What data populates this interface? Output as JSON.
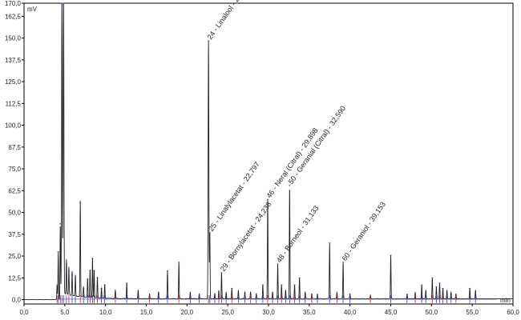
{
  "chart_data": {
    "type": "line",
    "title": "",
    "ylabel": "mV",
    "xlabel": "min",
    "xlim": [
      0,
      60
    ],
    "ylim": [
      -2.5,
      170
    ],
    "xticks": [
      0,
      5,
      10,
      15,
      20,
      25,
      30,
      35,
      40,
      45,
      50,
      55,
      60
    ],
    "xtick_labels": [
      "0,0",
      "5,0",
      "10,0",
      "15,0",
      "20,0",
      "25,0",
      "30,0",
      "35,0",
      "40,0",
      "45,0",
      "50,0",
      "55,0",
      "60,0"
    ],
    "yticks": [
      0,
      12.5,
      25,
      37.5,
      50,
      62.5,
      75,
      87.5,
      100,
      112.5,
      125,
      137.5,
      150,
      162.5,
      170
    ],
    "ytick_labels": [
      "0,0",
      "12,5",
      "25,0",
      "37,5",
      "50,0",
      "62,5",
      "75,0",
      "87,5",
      "100,0",
      "112,5",
      "125,0",
      "137,5",
      "150,0",
      "162,5",
      "170,0"
    ],
    "grid": false,
    "legend": "none",
    "trace_color": "#222222",
    "baseline_color": "#3a3acc",
    "peaks": [
      {
        "rt": 4.05,
        "height": 8
      },
      {
        "rt": 4.2,
        "height": 27
      },
      {
        "rt": 4.45,
        "height": 43
      },
      {
        "rt": 4.65,
        "height": 171
      },
      {
        "rt": 4.85,
        "height": 171
      },
      {
        "rt": 5.2,
        "height": 20
      },
      {
        "rt": 5.5,
        "height": 16
      },
      {
        "rt": 5.9,
        "height": 14
      },
      {
        "rt": 6.3,
        "height": 12
      },
      {
        "rt": 6.9,
        "height": 55
      },
      {
        "rt": 7.3,
        "height": 6
      },
      {
        "rt": 7.8,
        "height": 11
      },
      {
        "rt": 8.1,
        "height": 16
      },
      {
        "rt": 8.4,
        "height": 23
      },
      {
        "rt": 8.6,
        "height": 16
      },
      {
        "rt": 9.0,
        "height": 12
      },
      {
        "rt": 9.5,
        "height": 6
      },
      {
        "rt": 9.9,
        "height": 8
      },
      {
        "rt": 11.2,
        "height": 5
      },
      {
        "rt": 12.6,
        "height": 9
      },
      {
        "rt": 14.0,
        "height": 5
      },
      {
        "rt": 15.4,
        "height": 3
      },
      {
        "rt": 16.5,
        "height": 4
      },
      {
        "rt": 17.6,
        "height": 16
      },
      {
        "rt": 19.0,
        "height": 21
      },
      {
        "rt": 20.4,
        "height": 4
      },
      {
        "rt": 21.5,
        "height": 3
      },
      {
        "rt": 22.637,
        "height": 148
      },
      {
        "rt": 22.797,
        "height": 38
      },
      {
        "rt": 23.4,
        "height": 3
      },
      {
        "rt": 23.9,
        "height": 5
      },
      {
        "rt": 24.238,
        "height": 15
      },
      {
        "rt": 24.8,
        "height": 4
      },
      {
        "rt": 25.5,
        "height": 6
      },
      {
        "rt": 26.3,
        "height": 5
      },
      {
        "rt": 27.1,
        "height": 4
      },
      {
        "rt": 27.8,
        "height": 4
      },
      {
        "rt": 28.5,
        "height": 3
      },
      {
        "rt": 29.3,
        "height": 8
      },
      {
        "rt": 29.898,
        "height": 57
      },
      {
        "rt": 30.5,
        "height": 4
      },
      {
        "rt": 31.133,
        "height": 20
      },
      {
        "rt": 31.6,
        "height": 8
      },
      {
        "rt": 32.1,
        "height": 5
      },
      {
        "rt": 32.59,
        "height": 65
      },
      {
        "rt": 33.2,
        "height": 8
      },
      {
        "rt": 33.8,
        "height": 12
      },
      {
        "rt": 34.5,
        "height": 4
      },
      {
        "rt": 35.3,
        "height": 3
      },
      {
        "rt": 36.0,
        "height": 3
      },
      {
        "rt": 37.5,
        "height": 32
      },
      {
        "rt": 38.4,
        "height": 4
      },
      {
        "rt": 39.153,
        "height": 21
      },
      {
        "rt": 40.0,
        "height": 3
      },
      {
        "rt": 42.5,
        "height": 2
      },
      {
        "rt": 45.0,
        "height": 25
      },
      {
        "rt": 47.0,
        "height": 3
      },
      {
        "rt": 48.0,
        "height": 4
      },
      {
        "rt": 48.8,
        "height": 8
      },
      {
        "rt": 49.3,
        "height": 5
      },
      {
        "rt": 50.1,
        "height": 12
      },
      {
        "rt": 50.6,
        "height": 7
      },
      {
        "rt": 51.0,
        "height": 9
      },
      {
        "rt": 51.4,
        "height": 6
      },
      {
        "rt": 51.9,
        "height": 5
      },
      {
        "rt": 52.4,
        "height": 4
      },
      {
        "rt": 53.0,
        "height": 3
      },
      {
        "rt": 54.7,
        "height": 6
      },
      {
        "rt": 55.4,
        "height": 5
      }
    ],
    "annotations": [
      {
        "text": "24 - Linalool - 22,637",
        "rt": 22.637,
        "y": 148,
        "color": "#222222"
      },
      {
        "text": "25 - Linalylacetat - 22,797",
        "rt": 22.797,
        "y": 38,
        "color": "#222222"
      },
      {
        "text": "29 - Bornylacetat - 24,238",
        "rt": 24.238,
        "y": 15,
        "color": "#2a8a2a"
      },
      {
        "text": "46 - Neral (Citral) - 29,898",
        "rt": 29.898,
        "y": 57,
        "color": "#222222"
      },
      {
        "text": "48 - Borneol - 31,133",
        "rt": 31.133,
        "y": 20,
        "color": "#222222"
      },
      {
        "text": "50 - Geranial (Citral) - 32,590",
        "rt": 32.59,
        "y": 65,
        "color": "#222222"
      },
      {
        "text": "60 - Geraniol - 39,153",
        "rt": 39.153,
        "y": 21,
        "color": "#222222"
      }
    ]
  }
}
